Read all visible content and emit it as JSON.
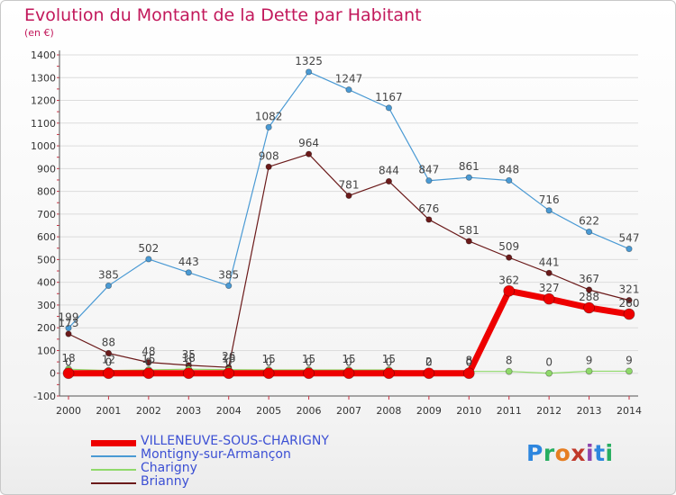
{
  "header": {
    "title": "Evolution du Montant de la Dette par Habitant",
    "unit": "(en €)"
  },
  "logo": {
    "letters": [
      "P",
      "r",
      "o",
      "x",
      "i",
      "t",
      "i"
    ],
    "colors": [
      "#2e86de",
      "#27ae60",
      "#e67e22",
      "#c0392b",
      "#8e44ad",
      "#2e86de",
      "#27ae60"
    ]
  },
  "chart_data": {
    "type": "line",
    "title": "Evolution du Montant de la Dette par Habitant",
    "ylabel": "(en €)",
    "xlabel": "",
    "x": [
      2000,
      2001,
      2002,
      2003,
      2004,
      2005,
      2006,
      2007,
      2008,
      2009,
      2010,
      2011,
      2012,
      2013,
      2014
    ],
    "ylim": [
      -100,
      1400
    ],
    "yticks": [
      -100,
      0,
      100,
      200,
      300,
      400,
      500,
      600,
      700,
      800,
      900,
      1000,
      1100,
      1200,
      1300,
      1400
    ],
    "grid": true,
    "legend_position": "bottom-left",
    "series": [
      {
        "name": "Brianny",
        "color": "#6b1a1a",
        "width": 1.2,
        "marker_r": 3.2,
        "show_labels": true,
        "values": [
          173,
          88,
          48,
          35,
          26,
          908,
          964,
          781,
          844,
          676,
          581,
          509,
          441,
          367,
          321
        ]
      },
      {
        "name": "Montigny-sur-Armançon",
        "color": "#4a9ad4",
        "width": 1.2,
        "marker_r": 3.2,
        "show_labels": true,
        "values": [
          199,
          385,
          502,
          443,
          385,
          1082,
          1325,
          1247,
          1167,
          847,
          861,
          848,
          716,
          622,
          547
        ]
      },
      {
        "name": "Charigny",
        "color": "#8fd96a",
        "width": 1.2,
        "marker_r": 3.5,
        "show_labels": true,
        "values": [
          18,
          12,
          15,
          18,
          16,
          15,
          15,
          15,
          15,
          2,
          8,
          8,
          0,
          9,
          9
        ]
      },
      {
        "name": "VILLENEUVE-SOUS-CHARIGNY",
        "color": "#ee0000",
        "width": 7,
        "marker_r": 6,
        "show_labels": true,
        "values": [
          0,
          0,
          0,
          0,
          0,
          0,
          0,
          0,
          0,
          0,
          0,
          362,
          327,
          288,
          260
        ]
      }
    ],
    "legend_order": [
      "VILLENEUVE-SOUS-CHARIGNY",
      "Montigny-sur-Armançon",
      "Charigny",
      "Brianny"
    ]
  }
}
